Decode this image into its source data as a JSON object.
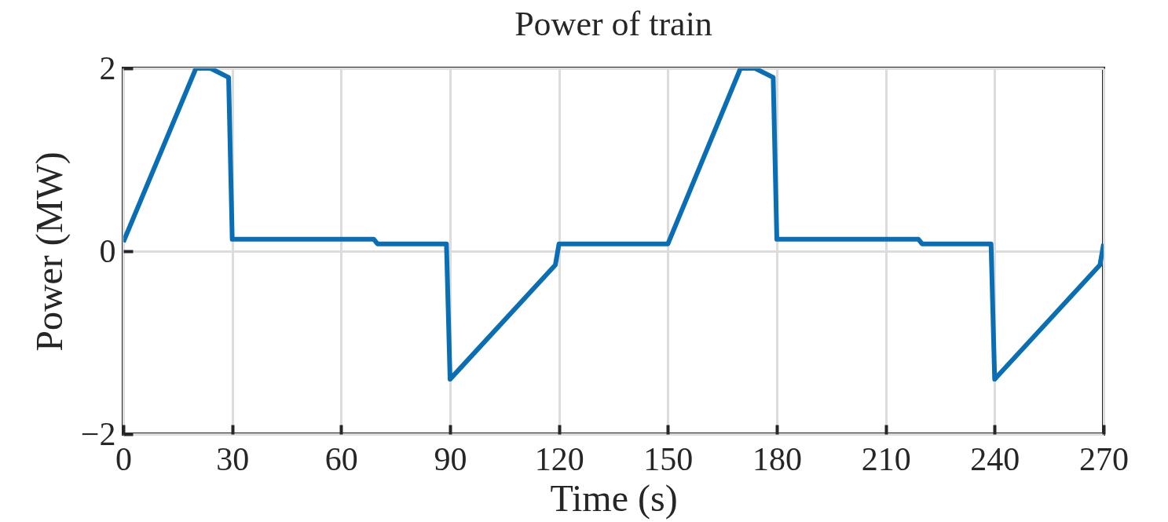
{
  "chart_data": {
    "type": "line",
    "title": "Power of train",
    "xlabel": "Time (s)",
    "ylabel": "Power (MW)",
    "x": [
      0,
      20,
      24,
      29,
      30,
      69,
      70,
      89,
      90,
      119,
      120,
      150,
      170,
      174,
      179,
      180,
      219,
      220,
      239,
      240,
      269,
      270
    ],
    "series": [
      {
        "color": "#0a6eb4",
        "values": [
          0.1,
          2,
          2,
          1.9,
          0.13,
          0.13,
          0.08,
          0.08,
          -1.4,
          -0.15,
          0.08,
          0.08,
          2,
          2,
          1.9,
          0.13,
          0.13,
          0.08,
          0.08,
          -1.4,
          -0.15,
          0.08
        ]
      }
    ],
    "xlim": [
      0,
      270
    ],
    "xticks": [
      0,
      30,
      60,
      90,
      120,
      150,
      180,
      210,
      240,
      270
    ],
    "ylim": [
      -2,
      2
    ],
    "yticks": [
      -2,
      0,
      2
    ],
    "grid": true,
    "line_style": "solid",
    "marker": "none"
  }
}
